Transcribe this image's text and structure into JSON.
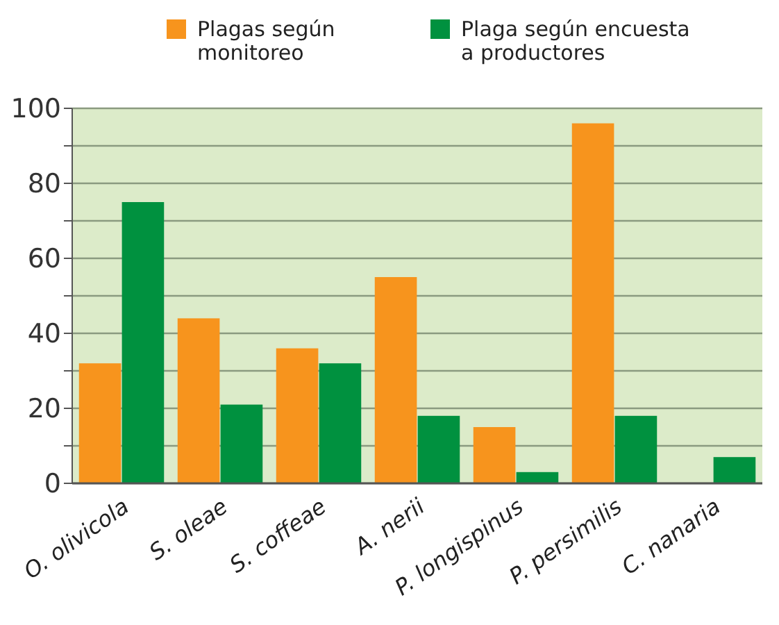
{
  "chart_data": {
    "type": "bar",
    "categories": [
      "O. olivicola",
      "S. oleae",
      "S. coffeae",
      "A. nerii",
      "P. longispinus",
      "P. persimilis",
      "C. nanaria"
    ],
    "series": [
      {
        "name": "Plagas según monitoreo",
        "color": "#f7941d",
        "values": [
          32,
          44,
          36,
          55,
          15,
          96,
          0
        ]
      },
      {
        "name": "Plaga según encuesta a productores",
        "color": "#00913f",
        "values": [
          75,
          21,
          32,
          18,
          3,
          18,
          7
        ]
      }
    ],
    "ylim": [
      0,
      100
    ],
    "yticks": [
      0,
      {
        "value": 10,
        "label": null
      },
      20,
      {
        "value": 30,
        "label": null
      },
      40,
      {
        "value": 50,
        "label": null
      },
      60,
      {
        "value": 70,
        "label": null
      },
      80,
      {
        "value": 90,
        "label": null
      },
      100
    ],
    "grid": "y",
    "legend": "top"
  }
}
